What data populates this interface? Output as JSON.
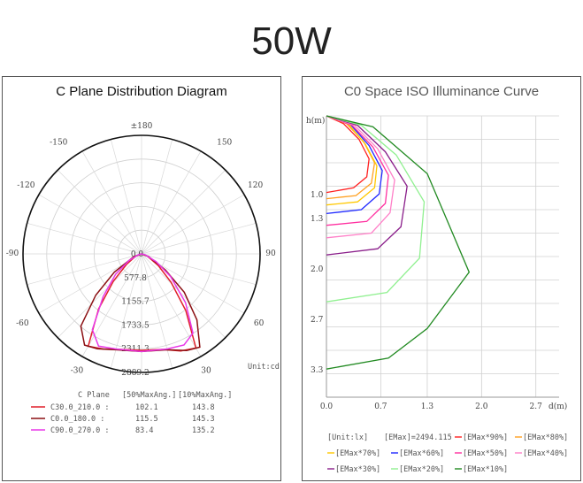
{
  "page": {
    "title": "50W"
  },
  "polar": {
    "title": "C Plane Distribution Diagram",
    "unit_label": "Unit:cd",
    "angle_labels": [
      "±180",
      "150",
      "120",
      "90",
      "60",
      "30",
      "0",
      "-30",
      "-60",
      "-90",
      "-120",
      "-150"
    ],
    "radial_labels": [
      "0.0",
      "577.8",
      "1155.7",
      "1733.5",
      "2311.3",
      "2889.2"
    ],
    "legend_header": {
      "c_plane": "C Plane",
      "col50": "[50%MaxAng.]",
      "col10": "[10%MaxAng.]"
    },
    "legend_rows": [
      {
        "name": "C30.0_210.0 :",
        "v50": "102.1",
        "v10": "143.8",
        "color": "#e0202a"
      },
      {
        "name": "C0.0_180.0 :",
        "v50": "115.5",
        "v10": "145.3",
        "color": "#8b0f12"
      },
      {
        "name": "C90.0_270.0 :",
        "v50": "83.4",
        "v10": "135.2",
        "color": "#e838e8"
      }
    ]
  },
  "iso": {
    "title": "C0 Space ISO Illuminance Curve",
    "y_axis_label": "h(m)",
    "x_axis_label": "d(m)",
    "y_ticks": [
      "1.0",
      "1.3",
      "2.0",
      "2.7",
      "3.3"
    ],
    "x_ticks": [
      "0.0",
      "0.7",
      "1.3",
      "2.0",
      "2.7"
    ],
    "unit": "[Unit:lx]",
    "emax": "[EMax]=2494.115",
    "legend": [
      {
        "label": "[EMax*90%]",
        "color": "#ff2020"
      },
      {
        "label": "[EMax*80%]",
        "color": "#ffa020"
      },
      {
        "label": "[EMax*70%]",
        "color": "#ffc800"
      },
      {
        "label": "[EMax*60%]",
        "color": "#1e28ff"
      },
      {
        "label": "[EMax*50%]",
        "color": "#ff30a0"
      },
      {
        "label": "[EMax*40%]",
        "color": "#ff80c8"
      },
      {
        "label": "[EMax*30%]",
        "color": "#8a1e8a"
      },
      {
        "label": "[EMax*20%]",
        "color": "#90f090"
      },
      {
        "label": "[EMax*10%]",
        "color": "#218a21"
      }
    ]
  },
  "chart_data": [
    {
      "type": "polar",
      "title": "C Plane Distribution Diagram",
      "unit": "cd",
      "rmax": 2889.2,
      "series": [
        {
          "name": "C30.0_210.0",
          "color": "#e0202a",
          "points": [
            [
              -30,
              2600
            ],
            [
              -22,
              2500
            ],
            [
              -12,
              2380
            ],
            [
              0,
              2350
            ],
            [
              12,
              2380
            ],
            [
              22,
              2550
            ],
            [
              30,
              2650
            ],
            [
              38,
              1750
            ],
            [
              46,
              1000
            ],
            [
              55,
              500
            ],
            [
              70,
              150
            ],
            [
              90,
              0
            ],
            [
              -90,
              0
            ],
            [
              -70,
              150
            ],
            [
              -55,
              450
            ],
            [
              -46,
              950
            ],
            [
              -38,
              1700
            ]
          ]
        },
        {
          "name": "C0.0_180.0",
          "color": "#8b0f12",
          "points": [
            [
              -32,
              2620
            ],
            [
              -25,
              2550
            ],
            [
              -15,
              2420
            ],
            [
              0,
              2380
            ],
            [
              15,
              2420
            ],
            [
              25,
              2600
            ],
            [
              32,
              2680
            ],
            [
              40,
              2100
            ],
            [
              48,
              1400
            ],
            [
              56,
              700
            ],
            [
              70,
              180
            ],
            [
              90,
              0
            ],
            [
              -90,
              0
            ],
            [
              -70,
              200
            ],
            [
              -56,
              800
            ],
            [
              -48,
              1500
            ],
            [
              -40,
              2300
            ]
          ]
        },
        {
          "name": "C90.0_270.0",
          "color": "#e838e8",
          "points": [
            [
              -25,
              2480
            ],
            [
              -15,
              2400
            ],
            [
              0,
              2380
            ],
            [
              15,
              2400
            ],
            [
              25,
              2450
            ],
            [
              33,
              2300
            ],
            [
              42,
              1600
            ],
            [
              52,
              900
            ],
            [
              62,
              400
            ],
            [
              75,
              100
            ],
            [
              90,
              0
            ],
            [
              -90,
              0
            ],
            [
              -75,
              80
            ],
            [
              -62,
              350
            ],
            [
              -52,
              800
            ],
            [
              -42,
              1400
            ],
            [
              -33,
              2200
            ]
          ]
        }
      ]
    },
    {
      "type": "line",
      "title": "C0 Space ISO Illuminance Curve",
      "xlabel": "d(m)",
      "ylabel": "h(m)",
      "xlim": [
        0.0,
        3.0
      ],
      "ylim": [
        0.0,
        3.6
      ],
      "series": [
        {
          "name": "[EMax*90%]",
          "color": "#ff2020",
          "points": [
            [
              0,
              0
            ],
            [
              0.22,
              0.1
            ],
            [
              0.42,
              0.3
            ],
            [
              0.55,
              0.55
            ],
            [
              0.52,
              0.78
            ],
            [
              0.35,
              0.92
            ],
            [
              0,
              0.98
            ]
          ]
        },
        {
          "name": "[EMax*80%]",
          "color": "#ffa020",
          "points": [
            [
              0,
              0
            ],
            [
              0.26,
              0.1
            ],
            [
              0.48,
              0.33
            ],
            [
              0.62,
              0.6
            ],
            [
              0.58,
              0.86
            ],
            [
              0.38,
              1.02
            ],
            [
              0,
              1.06
            ]
          ]
        },
        {
          "name": "[EMax*70%]",
          "color": "#ffc800",
          "points": [
            [
              0,
              0
            ],
            [
              0.28,
              0.1
            ],
            [
              0.5,
              0.36
            ],
            [
              0.65,
              0.64
            ],
            [
              0.62,
              0.92
            ],
            [
              0.4,
              1.1
            ],
            [
              0,
              1.14
            ]
          ]
        },
        {
          "name": "[EMax*60%]",
          "color": "#1e28ff",
          "points": [
            [
              0,
              0
            ],
            [
              0.3,
              0.1
            ],
            [
              0.55,
              0.38
            ],
            [
              0.72,
              0.7
            ],
            [
              0.68,
              1.0
            ],
            [
              0.45,
              1.2
            ],
            [
              0,
              1.25
            ]
          ]
        },
        {
          "name": "[EMax*50%]",
          "color": "#ff30a0",
          "points": [
            [
              0,
              0
            ],
            [
              0.33,
              0.12
            ],
            [
              0.6,
              0.4
            ],
            [
              0.8,
              0.76
            ],
            [
              0.76,
              1.12
            ],
            [
              0.52,
              1.35
            ],
            [
              0,
              1.4
            ]
          ]
        },
        {
          "name": "[EMax*40%]",
          "color": "#ff80c8",
          "points": [
            [
              0,
              0
            ],
            [
              0.36,
              0.12
            ],
            [
              0.66,
              0.42
            ],
            [
              0.88,
              0.82
            ],
            [
              0.82,
              1.24
            ],
            [
              0.58,
              1.5
            ],
            [
              0,
              1.56
            ]
          ]
        },
        {
          "name": "[EMax*30%]",
          "color": "#8a1e8a",
          "points": [
            [
              0,
              0
            ],
            [
              0.4,
              0.12
            ],
            [
              0.76,
              0.46
            ],
            [
              1.04,
              0.9
            ],
            [
              0.96,
              1.42
            ],
            [
              0.66,
              1.7
            ],
            [
              0,
              1.78
            ]
          ]
        },
        {
          "name": "[EMax*20%]",
          "color": "#90f090",
          "points": [
            [
              0,
              0
            ],
            [
              0.45,
              0.12
            ],
            [
              0.9,
              0.5
            ],
            [
              1.26,
              1.1
            ],
            [
              1.2,
              1.82
            ],
            [
              0.78,
              2.26
            ],
            [
              0,
              2.38
            ]
          ]
        },
        {
          "name": "[EMax*10%]",
          "color": "#218a21",
          "points": [
            [
              0,
              0
            ],
            [
              0.6,
              0.14
            ],
            [
              1.3,
              0.74
            ],
            [
              1.84,
              2.0
            ],
            [
              1.3,
              2.72
            ],
            [
              0.8,
              3.1
            ],
            [
              0,
              3.24
            ]
          ]
        }
      ]
    }
  ]
}
